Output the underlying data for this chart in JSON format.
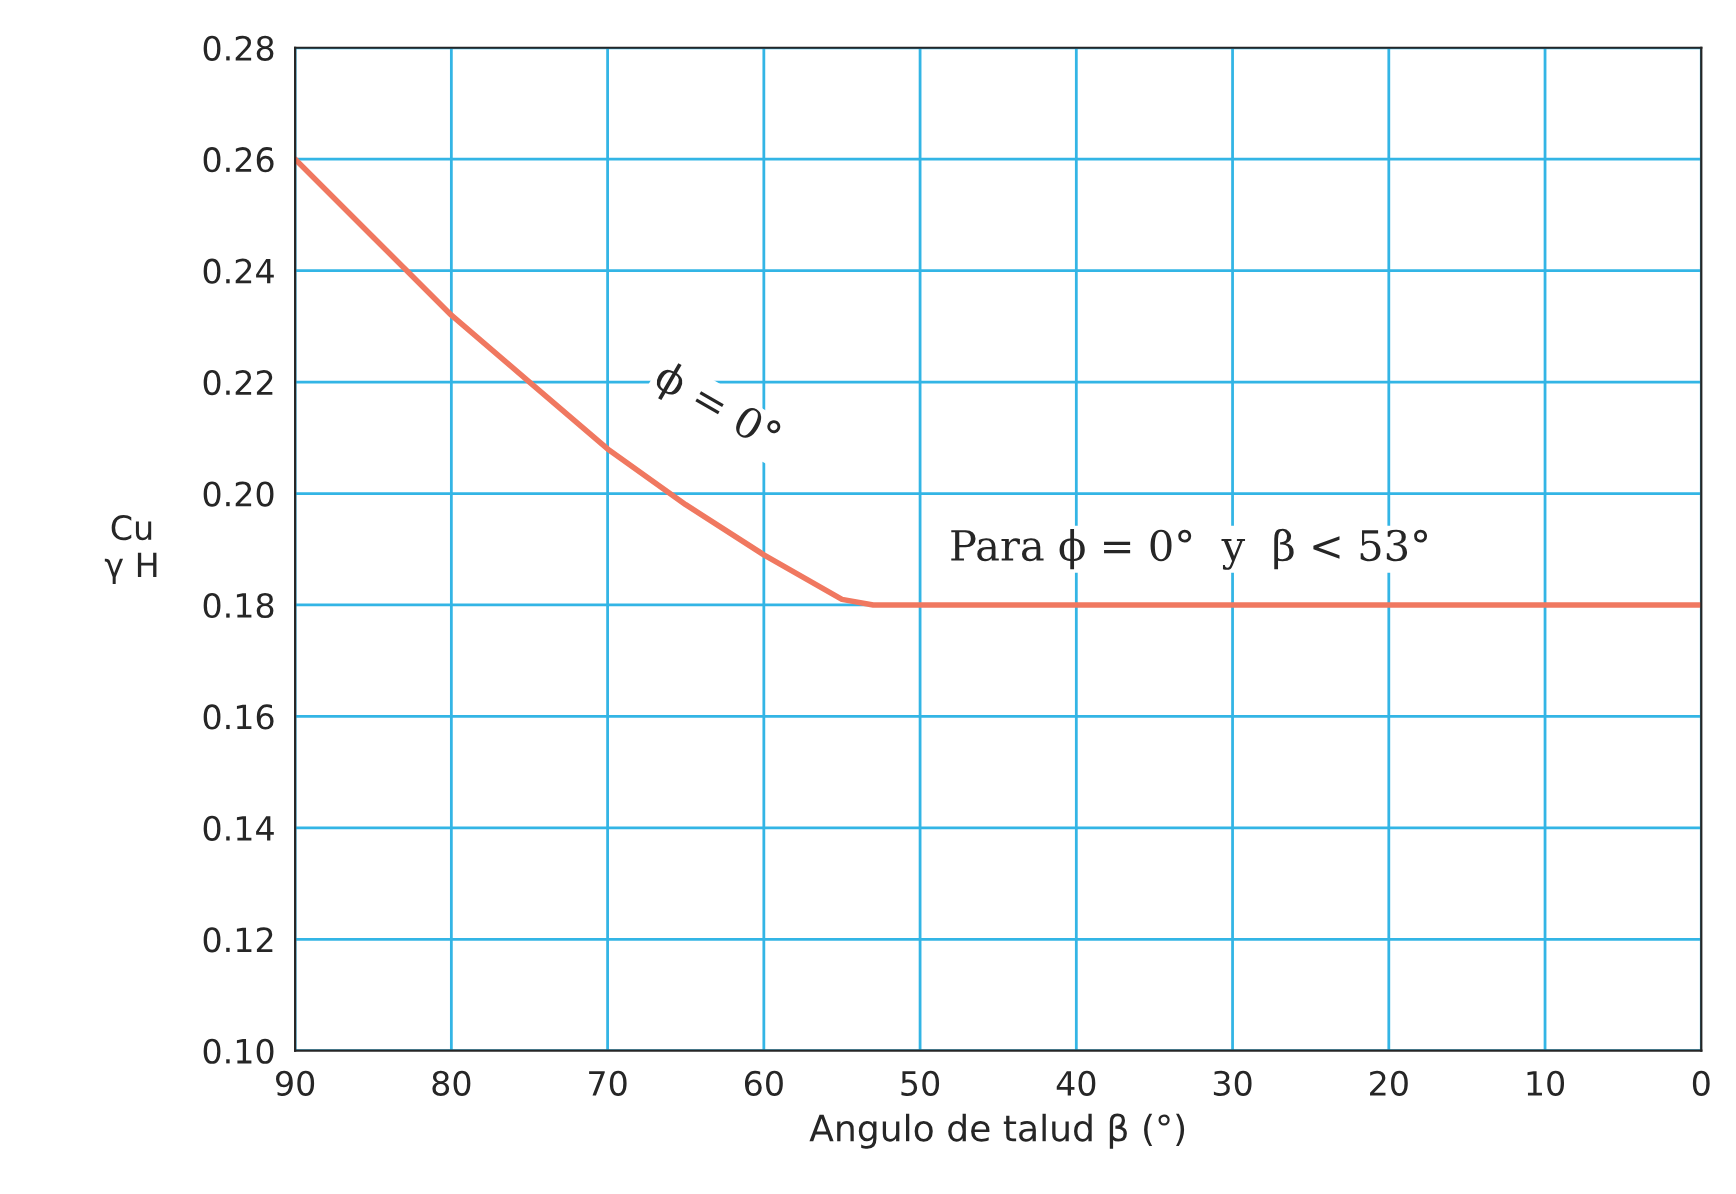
{
  "chart_data": {
    "type": "line",
    "x": [
      90,
      85,
      80,
      75,
      70,
      65,
      60,
      55,
      53,
      0
    ],
    "series": [
      {
        "color": "#f07860",
        "values": [
          0.26,
          0.246,
          0.232,
          0.22,
          0.208,
          0.198,
          0.189,
          0.181,
          0.18,
          0.18
        ]
      }
    ],
    "xlabel": "Angulo de talud β (°)",
    "ylabel": "Cu\nγ H",
    "xlim": [
      90,
      0
    ],
    "xticks": [
      90,
      80,
      70,
      60,
      50,
      40,
      30,
      20,
      10,
      0
    ],
    "ylim": [
      0.1,
      0.28
    ],
    "yticks": [
      {
        "value": 0.1,
        "label": "0.10"
      },
      {
        "value": 0.12,
        "label": "0.12"
      },
      {
        "value": 0.14,
        "label": "0.14"
      },
      {
        "value": 0.16,
        "label": "0.16"
      },
      {
        "value": 0.18,
        "label": "0.18"
      },
      {
        "value": 0.2,
        "label": "0.20"
      },
      {
        "value": 0.22,
        "label": "0.22"
      },
      {
        "value": 0.24,
        "label": "0.24"
      },
      {
        "value": 0.26,
        "label": "0.26"
      },
      {
        "value": 0.28,
        "label": "0.28"
      }
    ],
    "annotations": [
      "ϕ = 0°",
      "Para ϕ = 0°  y  β < 53°"
    ],
    "grid": true,
    "legend": false,
    "marker": "none",
    "line_style": "solid"
  }
}
